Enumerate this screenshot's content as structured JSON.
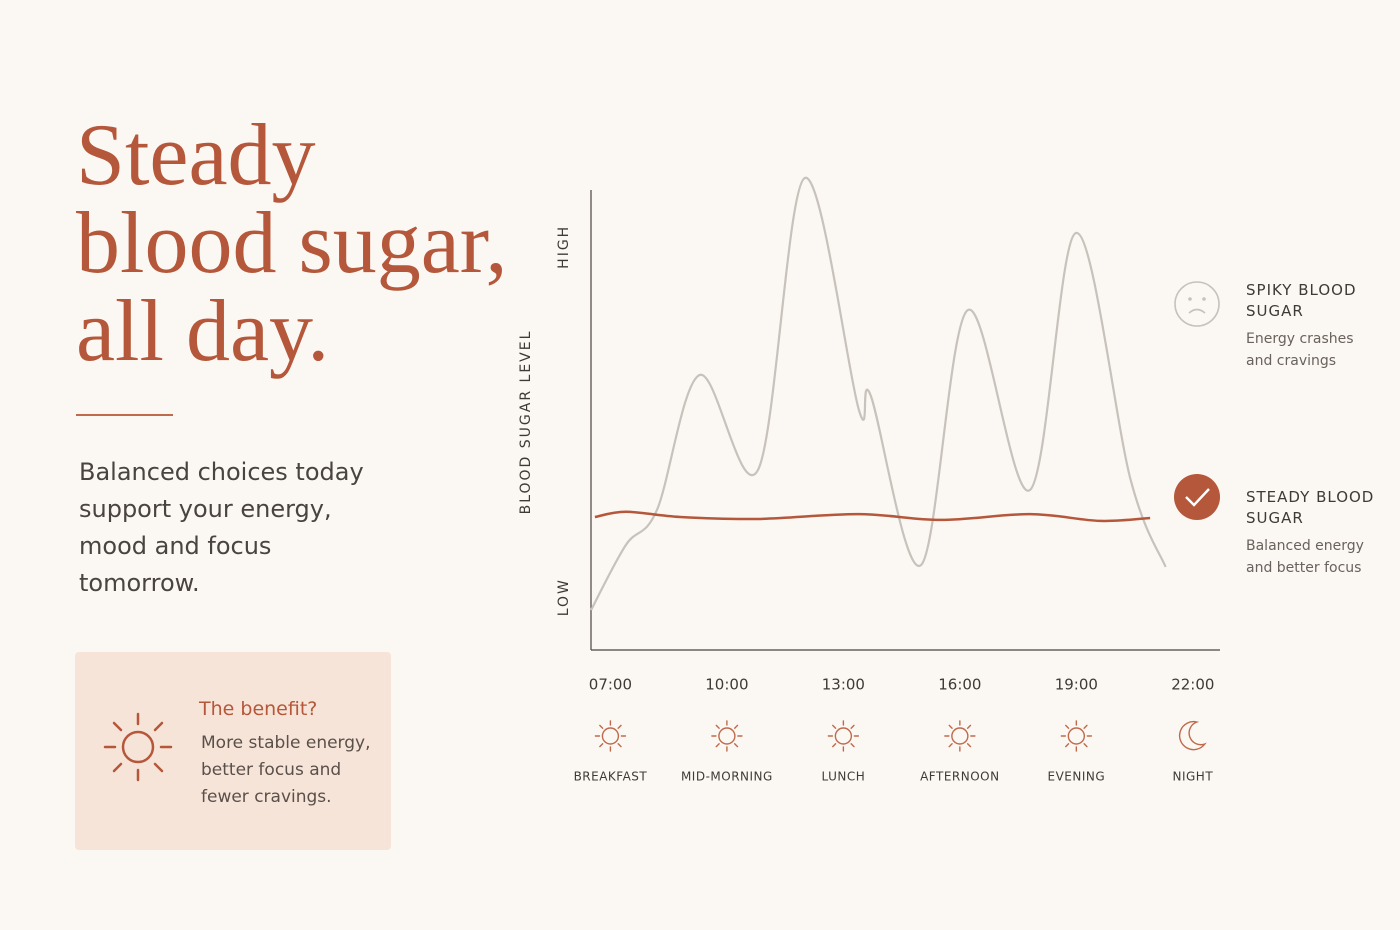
{
  "headline": {
    "title_lines": [
      "Steady",
      "blood sugar,",
      "all day."
    ],
    "text": "Balanced choices today support your energy, mood and focus tomorrow."
  },
  "benefit": {
    "title": "The benefit?",
    "text": "More stable energy, better focus and fewer cravings."
  },
  "chart_data": {
    "type": "line",
    "y_label": "BLOOD SUGAR LEVEL",
    "xlim": [
      6.5,
      22.7
    ],
    "ylim": [
      0,
      100
    ],
    "xticks": [
      {
        "value": 7,
        "label": "07:00"
      },
      {
        "value": 10,
        "label": "10:00"
      },
      {
        "value": 13,
        "label": "13:00"
      },
      {
        "value": 16,
        "label": "16:00"
      },
      {
        "value": 19,
        "label": "19:00"
      },
      {
        "value": 22,
        "label": "22:00"
      }
    ],
    "tick_captions": [
      "BREAKFAST",
      "MID-MORNING",
      "LUNCH",
      "AFTERNOON",
      "EVENING",
      "NIGHT"
    ],
    "yticks": [
      {
        "value": 11,
        "label": "LOW"
      },
      {
        "value": 84,
        "label": "HIGH"
      }
    ],
    "series": [
      {
        "name": "SPIKY BLOOD SUGAR",
        "description": "Energy crashes and cravings",
        "color": "#c7c2bb",
        "x": [
          6.5,
          7.4,
          8.2,
          9.3,
          10.8,
          12.0,
          13.4,
          13.7,
          15.0,
          16.2,
          17.8,
          19.0,
          20.4,
          21.3
        ],
        "values": [
          8.3,
          21.9,
          29.2,
          57.3,
          37.5,
          98.3,
          50,
          53.1,
          17.7,
          70.8,
          33.3,
          86.9,
          35.4,
          17.3
        ]
      },
      {
        "name": "STEADY BLOOD SUGAR",
        "description": "Balanced energy and better focus",
        "color": "#b5573a",
        "x": [
          6.6,
          7.4,
          8.8,
          10.8,
          13.4,
          15.5,
          17.8,
          19.6,
          20.9
        ],
        "values": [
          27.7,
          28.8,
          27.7,
          27.3,
          28.3,
          27.1,
          28.3,
          26.9,
          27.5
        ]
      }
    ]
  }
}
